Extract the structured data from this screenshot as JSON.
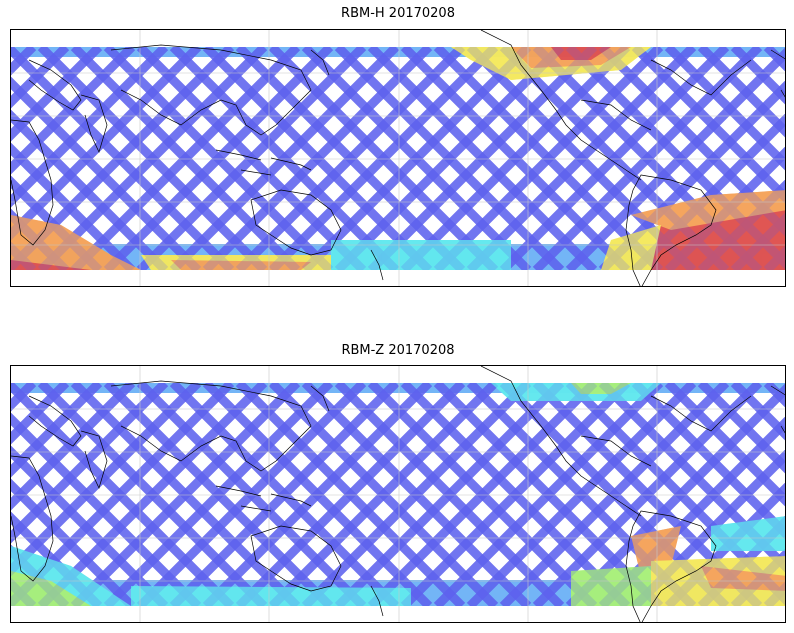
{
  "figure": {
    "panels": [
      {
        "id": "rbm-h",
        "title": "RBM-H 20170208"
      },
      {
        "id": "rbm-z",
        "title": "RBM-Z 20170208"
      }
    ]
  },
  "colors": {
    "low": "#5e62ee",
    "mid_low": "#5aa8f5",
    "mid": "#62e8ee",
    "mid_high": "#a8f07a",
    "high_yellow": "#f4e95e",
    "high_orange": "#f5a35a",
    "high_red": "#e0524f",
    "coast": "#000000",
    "grid": "#c8c8c8"
  }
}
